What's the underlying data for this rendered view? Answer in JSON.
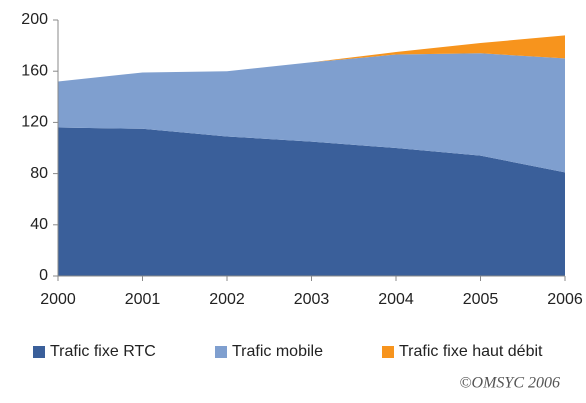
{
  "chart_data": {
    "type": "stacked_area",
    "x": [
      2000,
      2001,
      2002,
      2003,
      2004,
      2005,
      2006
    ],
    "series": [
      {
        "name": "Trafic fixe RTC",
        "color": "#3a5f9a",
        "values": [
          116,
          115,
          109,
          105,
          100,
          94,
          81
        ]
      },
      {
        "name": "Trafic mobile",
        "color": "#7f9fcf",
        "values": [
          36,
          44,
          51,
          62,
          73,
          80,
          89
        ]
      },
      {
        "name": "Trafic fixe haut débit",
        "color": "#f7941d",
        "values": [
          0,
          0,
          0,
          0,
          2,
          8,
          18
        ]
      }
    ],
    "xlim": [
      2000,
      2006
    ],
    "xticks": [
      2000,
      2001,
      2002,
      2003,
      2004,
      2005,
      2006
    ],
    "ylim": [
      0,
      200
    ],
    "yticks": [
      0,
      40,
      80,
      120,
      160,
      200
    ],
    "grid": false,
    "legend": "bottom",
    "source": "©OMSYC 2006"
  }
}
